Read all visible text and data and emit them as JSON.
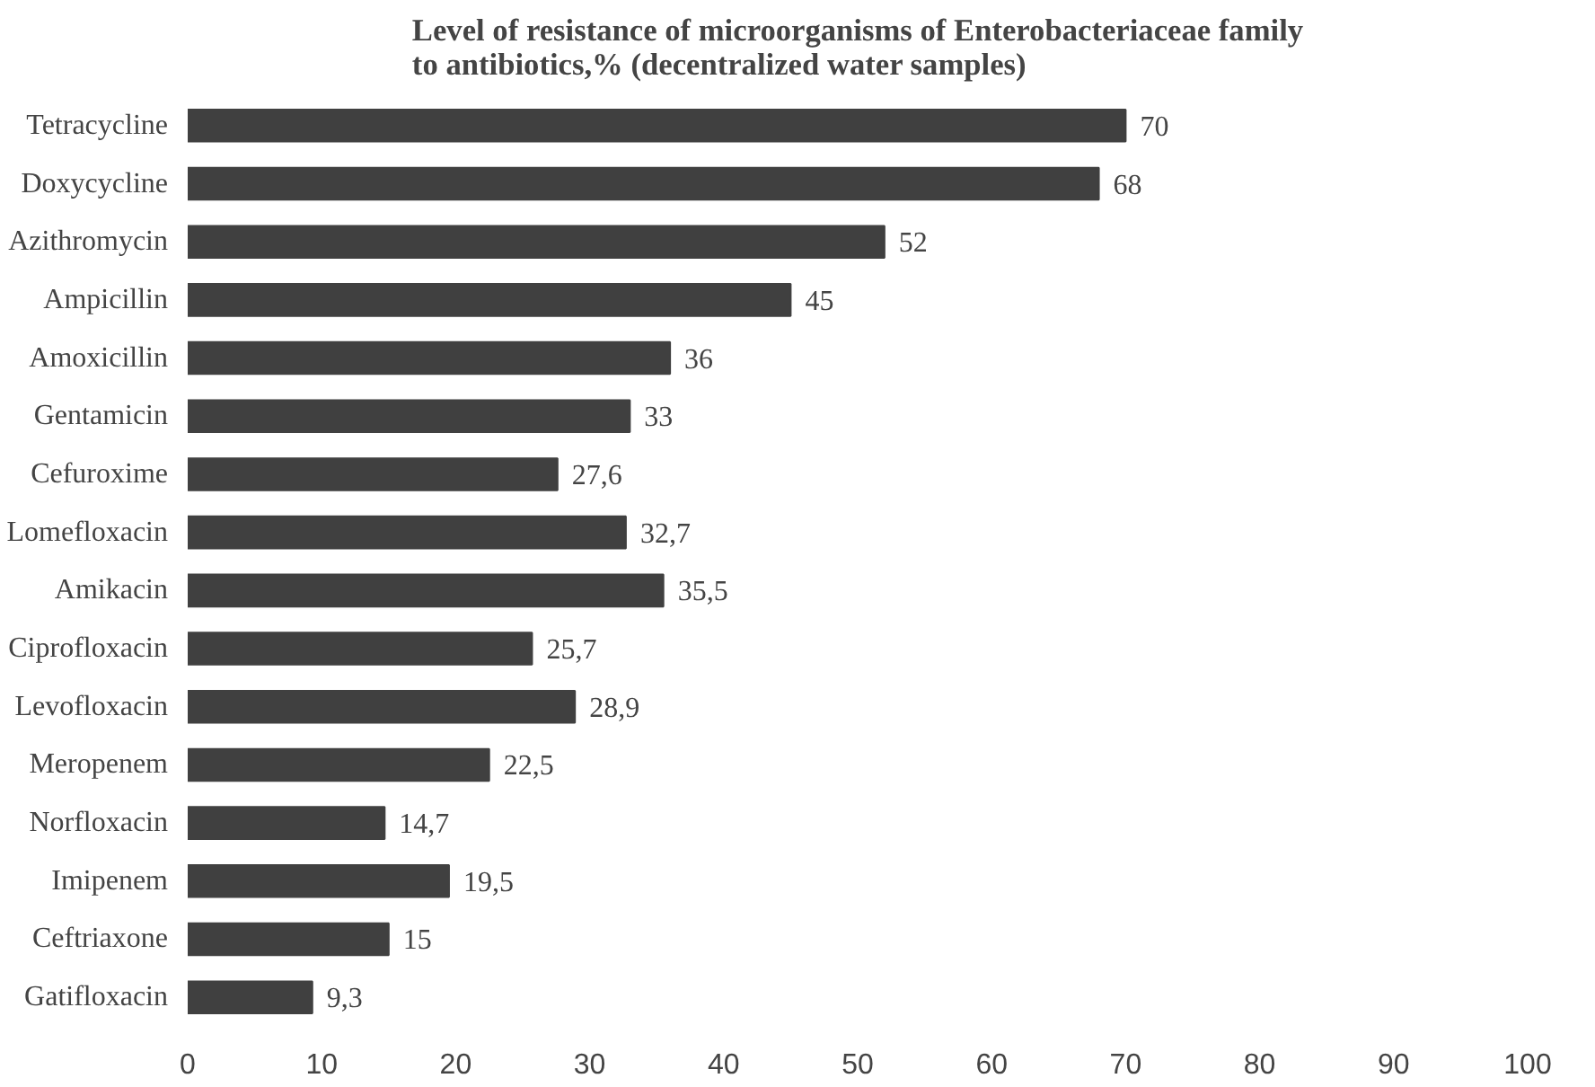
{
  "chart_data": {
    "type": "bar",
    "orientation": "horizontal",
    "title": "Level of resistance of microorganisms of Enterobacteriaceae family\nto antibiotics,% (decentralized water samples)",
    "categories": [
      "Tetracycline",
      "Doxycycline",
      "Azithromycin",
      "Ampicillin",
      "Amoxicillin",
      "Gentamicin",
      "Cefuroxime",
      "Lomefloxacin",
      "Amikacin",
      "Ciprofloxacin",
      "Levofloxacin",
      "Meropenem",
      "Norfloxacin",
      "Imipenem",
      "Ceftriaxone",
      "Gatifloxacin"
    ],
    "values": [
      70,
      68,
      52,
      45,
      36,
      33,
      27.6,
      32.7,
      35.5,
      25.7,
      28.9,
      22.5,
      14.7,
      19.5,
      15,
      9.3
    ],
    "value_labels": [
      "70",
      "68",
      "52",
      "45",
      "36",
      "33",
      "27,6",
      "32,7",
      "35,5",
      "25,7",
      "28,9",
      "22,5",
      "14,7",
      "19,5",
      "15",
      "9,3"
    ],
    "color": "#404040",
    "xlim": [
      0,
      100
    ],
    "xticks": [
      0,
      10,
      20,
      30,
      40,
      50,
      60,
      70,
      80,
      90,
      100
    ],
    "grid": false
  }
}
